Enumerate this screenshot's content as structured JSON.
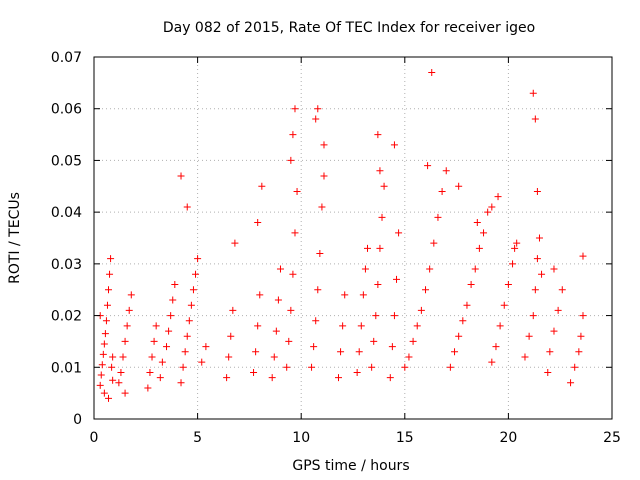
{
  "chart_data": {
    "type": "scatter",
    "title": "Day 082 of 2015, Rate Of TEC Index for receiver igeo",
    "xlabel": "GPS time / hours",
    "ylabel": "ROTI / TECUs",
    "xlim": [
      0,
      25
    ],
    "ylim": [
      0,
      0.07
    ],
    "x_ticks": [
      "0",
      "5",
      "10",
      "15",
      "20",
      "25"
    ],
    "y_ticks": [
      "0",
      "0.01",
      "0.02",
      "0.03",
      "0.04",
      "0.05",
      "0.06",
      "0.07"
    ],
    "grid": true,
    "legend": "none",
    "marker": "plus",
    "color": "#ff0000",
    "series": [
      {
        "x": [
          0.3,
          0.35,
          0.4,
          0.45,
          0.5,
          0.55,
          0.6,
          0.65,
          0.7,
          0.75,
          0.8,
          0.85,
          0.9,
          0.3,
          0.5,
          0.7,
          0.9,
          1.2,
          1.3,
          1.4,
          1.5,
          1.6,
          1.7,
          1.8,
          1.5,
          2.6,
          2.7,
          2.8,
          2.9,
          3.0,
          3.2,
          3.3,
          3.5,
          3.6,
          3.7,
          3.8,
          3.9,
          4.2,
          4.3,
          4.4,
          4.5,
          4.6,
          4.7,
          4.8,
          4.9,
          5.0,
          5.2,
          5.4,
          4.2,
          4.5,
          6.4,
          6.5,
          6.6,
          6.7,
          6.8,
          7.7,
          7.8,
          7.9,
          8.0,
          8.1,
          7.9,
          8.6,
          8.7,
          8.8,
          8.9,
          9.0,
          9.3,
          9.4,
          9.5,
          9.6,
          9.7,
          9.8,
          9.5,
          9.6,
          9.7,
          10.5,
          10.6,
          10.7,
          10.8,
          10.9,
          11.0,
          11.1,
          10.7,
          10.8,
          11.1,
          11.8,
          11.9,
          12.0,
          12.1,
          12.7,
          12.8,
          12.9,
          13.0,
          13.1,
          13.2,
          13.4,
          13.5,
          13.6,
          13.7,
          13.8,
          13.9,
          14.0,
          13.7,
          13.8,
          14.3,
          14.4,
          14.5,
          14.6,
          14.7,
          14.5,
          15.0,
          15.2,
          15.4,
          15.6,
          15.8,
          16.0,
          16.2,
          16.4,
          16.6,
          16.8,
          17.0,
          16.3,
          16.1,
          17.2,
          17.4,
          17.6,
          17.8,
          18.0,
          18.2,
          18.4,
          18.6,
          18.8,
          19.0,
          17.6,
          18.5,
          19.2,
          19.4,
          19.6,
          19.8,
          20.0,
          20.2,
          20.4,
          19.5,
          19.2,
          20.3,
          20.8,
          21.0,
          21.2,
          21.3,
          21.4,
          21.5,
          21.6,
          21.3,
          21.2,
          21.4,
          21.9,
          22.0,
          22.2,
          22.4,
          22.6,
          22.2,
          23.0,
          23.2,
          23.4,
          23.5,
          23.6,
          23.6
        ],
        "y": [
          0.0065,
          0.0085,
          0.0105,
          0.0125,
          0.0145,
          0.0165,
          0.019,
          0.022,
          0.025,
          0.028,
          0.031,
          0.01,
          0.0075,
          0.02,
          0.005,
          0.004,
          0.012,
          0.007,
          0.009,
          0.012,
          0.015,
          0.018,
          0.021,
          0.024,
          0.005,
          0.006,
          0.009,
          0.012,
          0.015,
          0.018,
          0.008,
          0.011,
          0.014,
          0.017,
          0.02,
          0.023,
          0.026,
          0.007,
          0.01,
          0.013,
          0.016,
          0.019,
          0.022,
          0.025,
          0.028,
          0.031,
          0.011,
          0.014,
          0.047,
          0.041,
          0.008,
          0.012,
          0.016,
          0.021,
          0.034,
          0.009,
          0.013,
          0.018,
          0.024,
          0.045,
          0.038,
          0.008,
          0.012,
          0.017,
          0.023,
          0.029,
          0.01,
          0.015,
          0.021,
          0.028,
          0.036,
          0.044,
          0.05,
          0.055,
          0.06,
          0.01,
          0.014,
          0.019,
          0.025,
          0.032,
          0.041,
          0.047,
          0.058,
          0.06,
          0.053,
          0.008,
          0.013,
          0.018,
          0.024,
          0.009,
          0.013,
          0.018,
          0.024,
          0.029,
          0.033,
          0.01,
          0.015,
          0.02,
          0.026,
          0.033,
          0.039,
          0.045,
          0.055,
          0.048,
          0.008,
          0.014,
          0.02,
          0.027,
          0.036,
          0.053,
          0.01,
          0.012,
          0.015,
          0.018,
          0.021,
          0.025,
          0.029,
          0.034,
          0.039,
          0.044,
          0.048,
          0.067,
          0.049,
          0.01,
          0.013,
          0.016,
          0.019,
          0.022,
          0.026,
          0.029,
          0.033,
          0.036,
          0.04,
          0.045,
          0.038,
          0.011,
          0.014,
          0.018,
          0.022,
          0.026,
          0.03,
          0.034,
          0.043,
          0.041,
          0.033,
          0.012,
          0.016,
          0.02,
          0.025,
          0.031,
          0.035,
          0.028,
          0.058,
          0.063,
          0.044,
          0.009,
          0.013,
          0.017,
          0.021,
          0.025,
          0.029,
          0.007,
          0.01,
          0.013,
          0.016,
          0.02,
          0.0315
        ]
      }
    ]
  }
}
